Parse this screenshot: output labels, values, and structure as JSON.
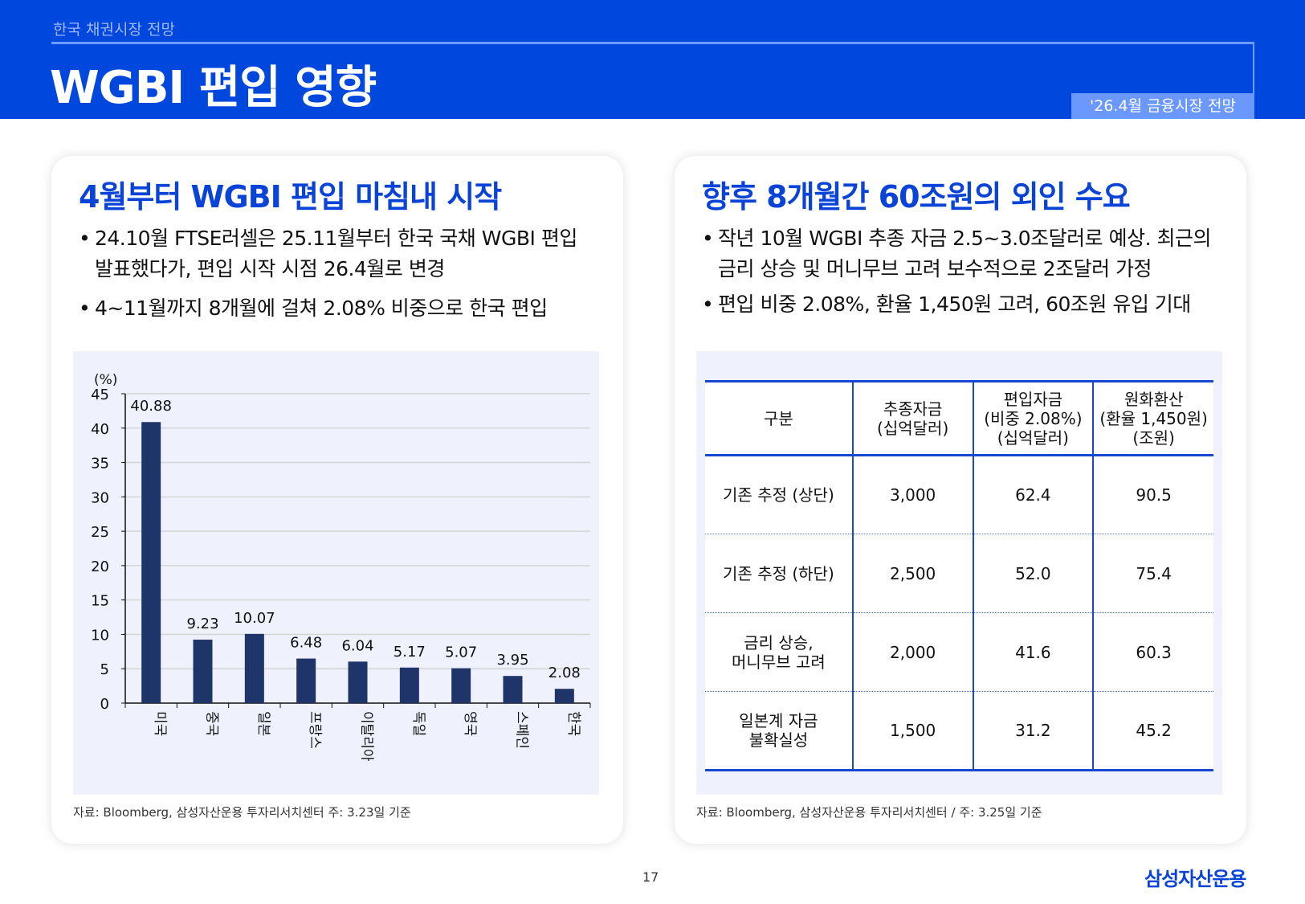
{
  "header": {
    "breadcrumb": "한국 채권시장 전망",
    "title": "WGBI 편입 영향",
    "badge": "'26.4월 금융시장 전망",
    "brand_color": "#0047DD"
  },
  "left": {
    "heading": "4월부터 WGBI 편입 마침내 시작",
    "bullets": [
      {
        "line1": "24.10월 FTSE러셀은 25.11월부터 한국 국채 WGBI 편입",
        "line2": "발표했다가, 편입 시작 시점 26.4월로 변경"
      },
      {
        "line1": "4~11월까지 8개월에 걸쳐 2.08% 비중으로 한국 편입"
      }
    ],
    "note": "자료: Bloomberg,  삼성자산운용 투자리서치센터 주: 3.23일 기준"
  },
  "chart_data": {
    "type": "bar",
    "ylabel": "(%)",
    "ylim": [
      0,
      45
    ],
    "yticks": [
      0,
      5,
      10,
      15,
      20,
      25,
      30,
      35,
      40,
      45
    ],
    "grid": true,
    "categories": [
      "미국",
      "중국",
      "일본",
      "프랑스",
      "이탈리아",
      "독일",
      "영국",
      "스페인",
      "한국"
    ],
    "values": [
      40.88,
      9.23,
      10.07,
      6.48,
      6.04,
      5.17,
      5.07,
      3.95,
      2.08
    ],
    "labels": [
      "40.88",
      "9.23",
      "10.07",
      "6.48",
      "6.04",
      "5.17",
      "5.07",
      "3.95",
      "2.08"
    ],
    "bar_color": "#1F3468"
  },
  "right": {
    "heading": "향후 8개월간 60조원의 외인 수요",
    "bullets": [
      {
        "line1": "작년 10월 WGBI 추종 자금 2.5~3.0조달러로 예상. 최근의",
        "line2": "금리 상승 및 머니무브 고려 보수적으로 2조달러 가정"
      },
      {
        "line1": "편입 비중 2.08%, 환율 1,450원 고려, 60조원 유입 기대"
      }
    ],
    "table": {
      "headers": [
        [
          "구분"
        ],
        [
          "추종자금",
          "(십억달러)"
        ],
        [
          "편입자금",
          "(비중 2.08%)",
          "(십억달러)"
        ],
        [
          "원화환산",
          "(환율 1,450원)",
          "(조원)"
        ]
      ],
      "rows": [
        [
          [
            "기존 추정 (상단)"
          ],
          "3,000",
          "62.4",
          "90.5"
        ],
        [
          [
            "기존 추정 (하단)"
          ],
          "2,500",
          "52.0",
          "75.4"
        ],
        [
          [
            "금리 상승,",
            "머니무브 고려"
          ],
          "2,000",
          "41.6",
          "60.3"
        ],
        [
          [
            "일본계 자금",
            "불확실성"
          ],
          "1,500",
          "31.2",
          "45.2"
        ]
      ]
    },
    "note": "자료: Bloomberg,  삼성자산운용 투자리서치센터 / 주: 3.25일 기준"
  },
  "footer": {
    "page": "17",
    "logo": "삼성자산운용"
  }
}
